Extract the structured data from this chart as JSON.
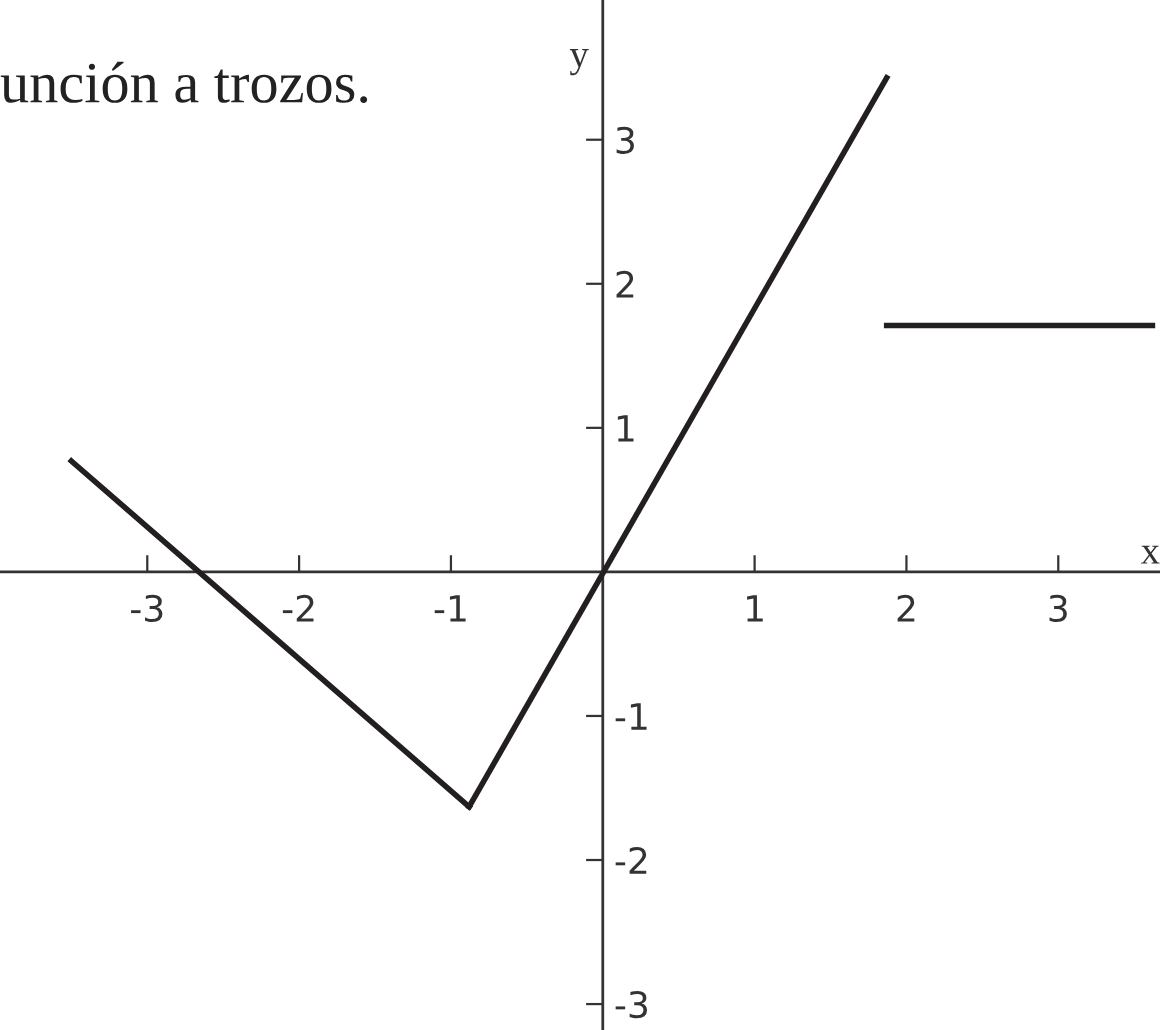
{
  "chart_data": {
    "type": "line",
    "title": "unción a trozos.",
    "xlabel": "x",
    "ylabel": "y",
    "series": [
      {
        "color": "#231f20",
        "x": [
          -3.5,
          -0.88
        ],
        "values": [
          0.77,
          -1.63
        ]
      },
      {
        "color": "#231f20",
        "x": [
          -0.88,
          1.87
        ],
        "values": [
          -1.63,
          3.43
        ]
      },
      {
        "color": "#231f20",
        "x": [
          1.87,
          3.62
        ],
        "values": [
          1.71,
          1.71
        ]
      }
    ],
    "xlim": [
      -3.97,
      3.67
    ],
    "ylim": [
      -3.18,
      3.97
    ],
    "xticks": [
      -3,
      -2,
      -1,
      1,
      2,
      3
    ],
    "yticks": [
      -3,
      -2,
      -1,
      1,
      2,
      3
    ],
    "grid": false,
    "legend": false,
    "marker": "none",
    "line_style": "solid"
  }
}
